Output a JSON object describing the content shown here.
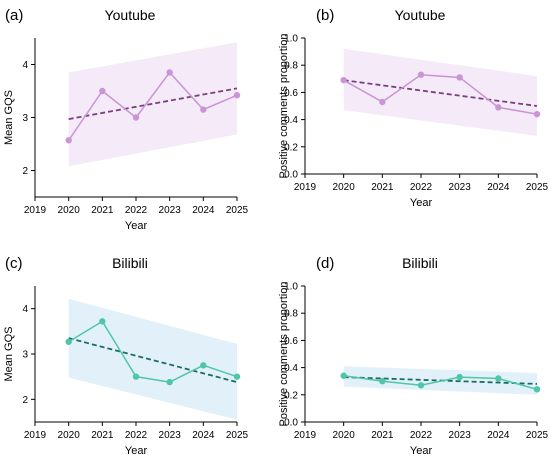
{
  "chart_data": [
    {
      "type": "line",
      "panel_label": "(a)",
      "title": "Youtube",
      "xlabel": "Year",
      "ylabel": "Mean GQS",
      "xlim": [
        2019,
        2025
      ],
      "ylim": [
        1.5,
        4.5
      ],
      "xticks": [
        2019,
        2020,
        2021,
        2022,
        2023,
        2024,
        2025
      ],
      "yticks": [
        2,
        3,
        4
      ],
      "x": [
        2020,
        2021,
        2022,
        2023,
        2024,
        2025
      ],
      "series": [
        {
          "values": [
            2.57,
            3.5,
            3.0,
            3.85,
            3.15,
            3.42
          ],
          "trend": [
            2.97,
            3.55
          ],
          "band_lower": [
            2.08,
            2.68
          ],
          "band_upper": [
            3.85,
            4.42
          ]
        }
      ],
      "color": "#c995d4",
      "trend_color": "#7b3f80",
      "band_color": "#f4e8f6"
    },
    {
      "type": "line",
      "panel_label": "(b)",
      "title": "Youtube",
      "xlabel": "Year",
      "ylabel": "Positive comments proportion",
      "xlim": [
        2019,
        2025
      ],
      "ylim": [
        0.0,
        1.0
      ],
      "xticks": [
        2019,
        2020,
        2021,
        2022,
        2023,
        2024,
        2025
      ],
      "yticks": [
        0.0,
        0.2,
        0.4,
        0.6,
        0.8,
        1.0
      ],
      "x": [
        2020,
        2021,
        2022,
        2023,
        2024,
        2025
      ],
      "series": [
        {
          "values": [
            0.69,
            0.53,
            0.73,
            0.71,
            0.49,
            0.44
          ],
          "trend": [
            0.69,
            0.5
          ],
          "band_lower": [
            0.47,
            0.28
          ],
          "band_upper": [
            0.92,
            0.72
          ]
        }
      ],
      "color": "#c995d4",
      "trend_color": "#7b3f80",
      "band_color": "#f4e8f6"
    },
    {
      "type": "line",
      "panel_label": "(c)",
      "title": "Bilibili",
      "xlabel": "Year",
      "ylabel": "Mean GQS",
      "xlim": [
        2019,
        2025
      ],
      "ylim": [
        1.5,
        4.5
      ],
      "xticks": [
        2019,
        2020,
        2021,
        2022,
        2023,
        2024,
        2025
      ],
      "yticks": [
        2,
        3,
        4
      ],
      "x": [
        2020,
        2021,
        2022,
        2023,
        2024,
        2025
      ],
      "series": [
        {
          "values": [
            3.27,
            3.72,
            2.5,
            2.38,
            2.75,
            2.5
          ],
          "trend": [
            3.35,
            2.38
          ],
          "band_lower": [
            2.48,
            1.55
          ],
          "band_upper": [
            4.22,
            3.22
          ]
        }
      ],
      "color": "#4fc6a6",
      "trend_color": "#1d6b64",
      "band_color": "#dff0f8"
    },
    {
      "type": "line",
      "panel_label": "(d)",
      "title": "Bilibili",
      "xlabel": "Year",
      "ylabel": "Positive comments proportion",
      "xlim": [
        2019,
        2025
      ],
      "ylim": [
        0.0,
        1.0
      ],
      "xticks": [
        2019,
        2020,
        2021,
        2022,
        2023,
        2024,
        2025
      ],
      "yticks": [
        0.0,
        0.2,
        0.4,
        0.6,
        0.8,
        1.0
      ],
      "x": [
        2020,
        2021,
        2022,
        2023,
        2024,
        2025
      ],
      "series": [
        {
          "values": [
            0.34,
            0.3,
            0.27,
            0.33,
            0.32,
            0.24
          ],
          "trend": [
            0.33,
            0.28
          ],
          "band_lower": [
            0.26,
            0.2
          ],
          "band_upper": [
            0.41,
            0.36
          ]
        }
      ],
      "color": "#4fc6a6",
      "trend_color": "#1d6b64",
      "band_color": "#dff0f8"
    }
  ]
}
